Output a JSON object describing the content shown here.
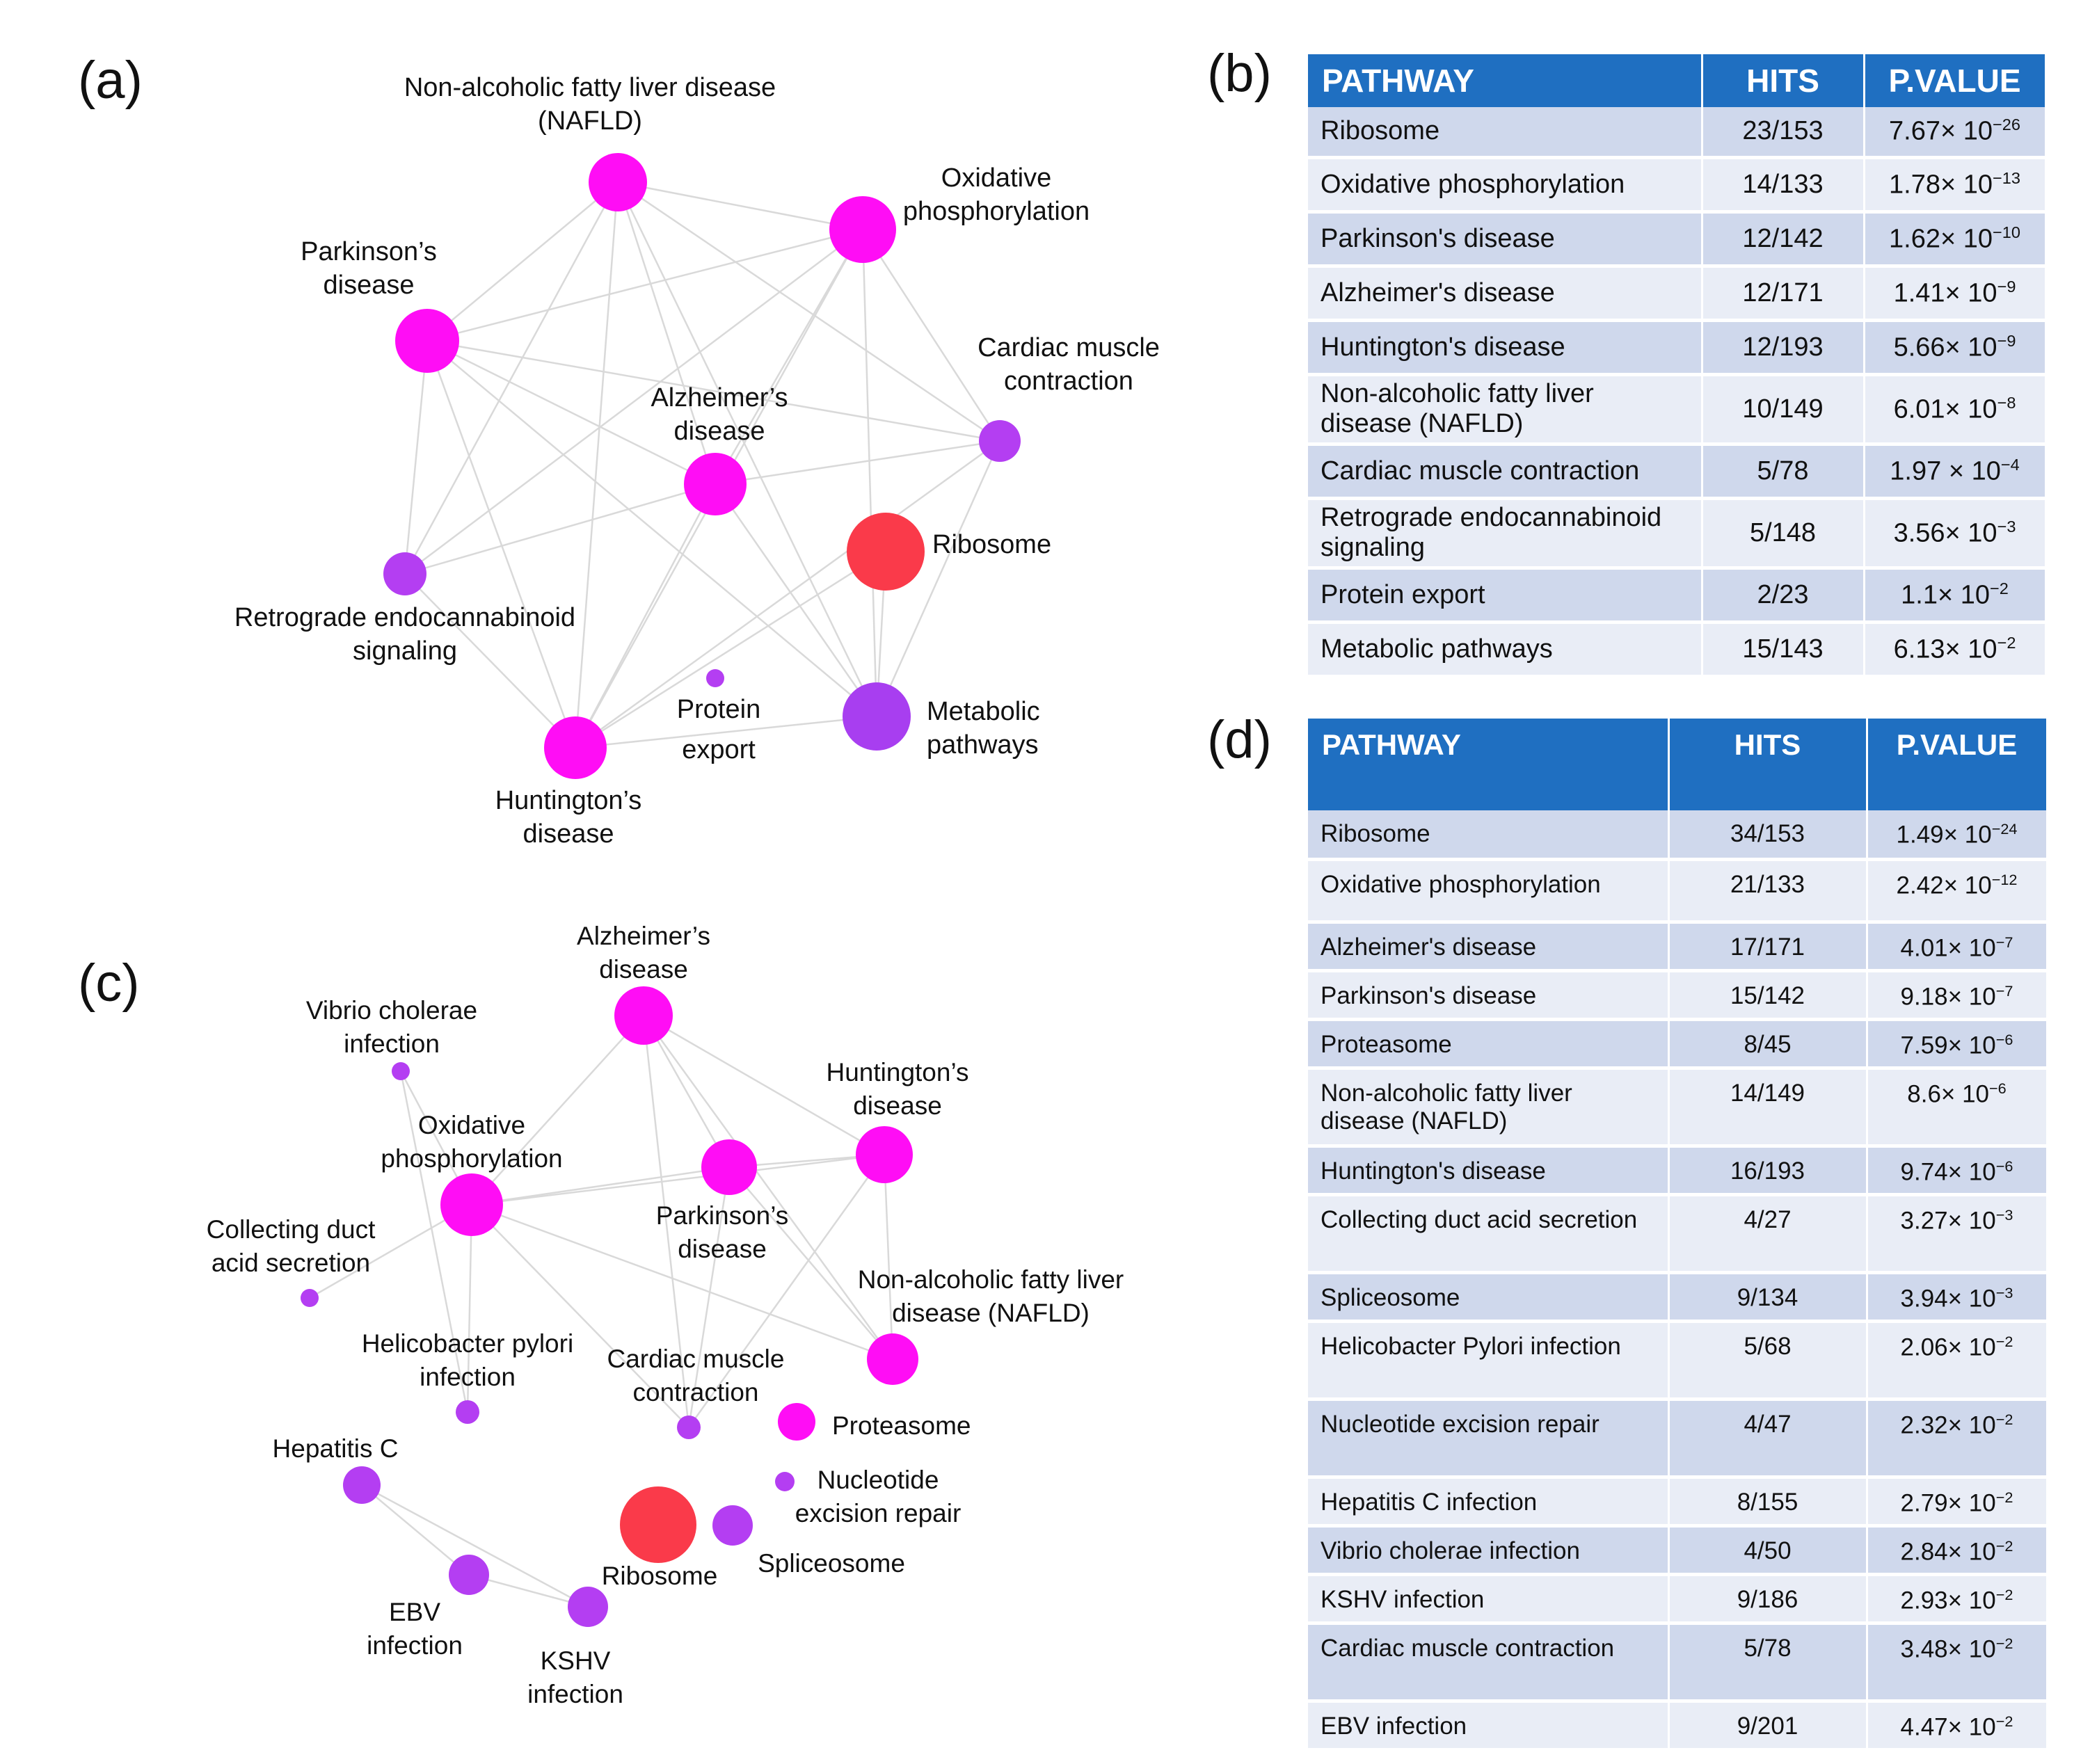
{
  "panels": {
    "a": "(a)",
    "b": "(b)",
    "c": "(c)",
    "d": "(d)"
  },
  "colors": {
    "magenta": "#ff0df5",
    "red": "#fa3a4a",
    "purple": "#b43ef2",
    "violet": "#a83ef0",
    "table_header": "#1f6fc1"
  },
  "network_a": {
    "nodes": [
      {
        "id": "nafld",
        "label": [
          "Non-alcoholic fatty liver disease",
          "(NAFLD)"
        ],
        "color": "magenta"
      },
      {
        "id": "oxphos",
        "label": [
          "Oxidative",
          "phosphorylation"
        ],
        "color": "magenta"
      },
      {
        "id": "parkinson",
        "label": [
          "Parkinson’s",
          "disease"
        ],
        "color": "magenta"
      },
      {
        "id": "cardiac",
        "label": [
          "Cardiac muscle",
          "contraction"
        ],
        "color": "purple"
      },
      {
        "id": "alzheimer",
        "label": [
          "Alzheimer’s",
          "disease"
        ],
        "color": "magenta"
      },
      {
        "id": "ribosome",
        "label": [
          "Ribosome"
        ],
        "color": "red"
      },
      {
        "id": "retrograde",
        "label": [
          "Retrograde endocannabinoid",
          "signaling"
        ],
        "color": "purple"
      },
      {
        "id": "protein_export",
        "label": [
          "Protein",
          "export"
        ],
        "color": "purple"
      },
      {
        "id": "metabolic",
        "label": [
          "Metabolic",
          "pathways"
        ],
        "color": "violet"
      },
      {
        "id": "huntington",
        "label": [
          "Huntington’s",
          "disease"
        ],
        "color": "magenta"
      }
    ],
    "edges": [
      [
        "nafld",
        "oxphos"
      ],
      [
        "nafld",
        "parkinson"
      ],
      [
        "nafld",
        "alzheimer"
      ],
      [
        "nafld",
        "cardiac"
      ],
      [
        "nafld",
        "retrograde"
      ],
      [
        "nafld",
        "huntington"
      ],
      [
        "nafld",
        "metabolic"
      ],
      [
        "oxphos",
        "parkinson"
      ],
      [
        "oxphos",
        "alzheimer"
      ],
      [
        "oxphos",
        "cardiac"
      ],
      [
        "oxphos",
        "huntington"
      ],
      [
        "oxphos",
        "retrograde"
      ],
      [
        "oxphos",
        "metabolic"
      ],
      [
        "parkinson",
        "alzheimer"
      ],
      [
        "parkinson",
        "cardiac"
      ],
      [
        "parkinson",
        "huntington"
      ],
      [
        "parkinson",
        "metabolic"
      ],
      [
        "parkinson",
        "retrograde"
      ],
      [
        "alzheimer",
        "cardiac"
      ],
      [
        "alzheimer",
        "huntington"
      ],
      [
        "alzheimer",
        "metabolic"
      ],
      [
        "alzheimer",
        "retrograde"
      ],
      [
        "cardiac",
        "huntington"
      ],
      [
        "cardiac",
        "metabolic"
      ],
      [
        "retrograde",
        "huntington"
      ],
      [
        "huntington",
        "metabolic"
      ],
      [
        "huntington",
        "ribosome"
      ],
      [
        "ribosome",
        "metabolic"
      ]
    ]
  },
  "network_c": {
    "nodes": [
      {
        "id": "alzheimer",
        "label": [
          "Alzheimer’s",
          "disease"
        ],
        "color": "magenta"
      },
      {
        "id": "vibrio",
        "label": [
          "Vibrio cholerae",
          "infection"
        ],
        "color": "purple"
      },
      {
        "id": "huntington",
        "label": [
          "Huntington’s",
          "disease"
        ],
        "color": "magenta"
      },
      {
        "id": "oxphos",
        "label": [
          "Oxidative",
          "phosphorylation"
        ],
        "color": "magenta"
      },
      {
        "id": "parkinson",
        "label": [
          "Parkinson’s",
          "disease"
        ],
        "color": "magenta"
      },
      {
        "id": "collecting",
        "label": [
          "Collecting duct",
          "acid secretion"
        ],
        "color": "purple"
      },
      {
        "id": "nafld",
        "label": [
          "Non-alcoholic fatty liver",
          "disease (NAFLD)"
        ],
        "color": "magenta"
      },
      {
        "id": "helico",
        "label": [
          "Helicobacter pylori",
          "infection"
        ],
        "color": "purple"
      },
      {
        "id": "cardiac",
        "label": [
          "Cardiac muscle",
          "contraction"
        ],
        "color": "purple"
      },
      {
        "id": "proteasome",
        "label": [
          "Proteasome"
        ],
        "color": "magenta"
      },
      {
        "id": "hepc",
        "label": [
          "Hepatitis C"
        ],
        "color": "purple"
      },
      {
        "id": "ner",
        "label": [
          "Nucleotide",
          "excision repair"
        ],
        "color": "purple"
      },
      {
        "id": "ribosome",
        "label": [
          "Ribosome"
        ],
        "color": "red"
      },
      {
        "id": "spliceosome",
        "label": [
          "Spliceosome"
        ],
        "color": "purple"
      },
      {
        "id": "ebv",
        "label": [
          "EBV",
          "infection"
        ],
        "color": "purple"
      },
      {
        "id": "kshv",
        "label": [
          "KSHV",
          "infection"
        ],
        "color": "purple"
      }
    ],
    "edges": [
      [
        "alzheimer",
        "oxphos"
      ],
      [
        "alzheimer",
        "parkinson"
      ],
      [
        "alzheimer",
        "huntington"
      ],
      [
        "alzheimer",
        "nafld"
      ],
      [
        "alzheimer",
        "cardiac"
      ],
      [
        "vibrio",
        "oxphos"
      ],
      [
        "vibrio",
        "helico"
      ],
      [
        "oxphos",
        "parkinson"
      ],
      [
        "oxphos",
        "huntington"
      ],
      [
        "oxphos",
        "collecting"
      ],
      [
        "oxphos",
        "helico"
      ],
      [
        "oxphos",
        "cardiac"
      ],
      [
        "oxphos",
        "nafld"
      ],
      [
        "parkinson",
        "huntington"
      ],
      [
        "parkinson",
        "nafld"
      ],
      [
        "parkinson",
        "cardiac"
      ],
      [
        "huntington",
        "nafld"
      ],
      [
        "huntington",
        "cardiac"
      ],
      [
        "hepc",
        "ebv"
      ],
      [
        "hepc",
        "kshv"
      ],
      [
        "ebv",
        "kshv"
      ]
    ]
  },
  "table_b": {
    "headers": [
      "PATHWAY",
      "HITS",
      "P.VALUE"
    ],
    "rows": [
      {
        "pathway": "Ribosome",
        "hits": "23/153",
        "p_mant": "7.67× 10",
        "p_exp": "−26"
      },
      {
        "pathway": "Oxidative phosphorylation",
        "hits": "14/133",
        "p_mant": "1.78× 10",
        "p_exp": "−13"
      },
      {
        "pathway": "Parkinson's disease",
        "hits": "12/142",
        "p_mant": "1.62× 10",
        "p_exp": "−10"
      },
      {
        "pathway": "Alzheimer's disease",
        "hits": "12/171",
        "p_mant": "1.41× 10",
        "p_exp": "−9"
      },
      {
        "pathway": "Huntington's disease",
        "hits": "12/193",
        "p_mant": "5.66× 10",
        "p_exp": "−9"
      },
      {
        "pathway": "Non-alcoholic fatty liver disease (NAFLD)",
        "hits": "10/149",
        "p_mant": "6.01× 10",
        "p_exp": "−8"
      },
      {
        "pathway": "Cardiac muscle contraction",
        "hits": "5/78",
        "p_mant": "1.97 × 10",
        "p_exp": "−4"
      },
      {
        "pathway": "Retrograde endocannabinoid signaling",
        "hits": "5/148",
        "p_mant": "3.56× 10",
        "p_exp": "−3"
      },
      {
        "pathway": "Protein export",
        "hits": "2/23",
        "p_mant": "1.1× 10",
        "p_exp": "−2"
      },
      {
        "pathway": "Metabolic pathways",
        "hits": "15/143",
        "p_mant": "6.13× 10",
        "p_exp": "−2"
      }
    ]
  },
  "table_d": {
    "headers": [
      "PATHWAY",
      "HITS",
      "P.VALUE"
    ],
    "rows": [
      {
        "pathway": "Ribosome",
        "hits": "34/153",
        "p_mant": "1.49× 10",
        "p_exp": "−24"
      },
      {
        "pathway": "Oxidative phosphorylation",
        "hits": "21/133",
        "p_mant": "2.42× 10",
        "p_exp": "−12"
      },
      {
        "pathway": "Alzheimer's disease",
        "hits": "17/171",
        "p_mant": "4.01× 10",
        "p_exp": "−7"
      },
      {
        "pathway": "Parkinson's disease",
        "hits": "15/142",
        "p_mant": "9.18× 10",
        "p_exp": "−7"
      },
      {
        "pathway": "Proteasome",
        "hits": "8/45",
        "p_mant": "7.59× 10",
        "p_exp": "−6"
      },
      {
        "pathway": "Non-alcoholic fatty liver disease (NAFLD)",
        "hits": "14/149",
        "p_mant": "8.6× 10",
        "p_exp": "−6"
      },
      {
        "pathway": "Huntington's disease",
        "hits": "16/193",
        "p_mant": "9.74× 10",
        "p_exp": "−6"
      },
      {
        "pathway": "Collecting duct acid secretion",
        "hits": "4/27",
        "p_mant": "3.27× 10",
        "p_exp": "−3"
      },
      {
        "pathway": "Spliceosome",
        "hits": "9/134",
        "p_mant": "3.94× 10",
        "p_exp": "−3"
      },
      {
        "pathway": "Helicobacter Pylori infection",
        "hits": "5/68",
        "p_mant": "2.06× 10",
        "p_exp": "−2"
      },
      {
        "pathway": "Nucleotide excision repair",
        "hits": "4/47",
        "p_mant": "2.32× 10",
        "p_exp": "−2"
      },
      {
        "pathway": "Hepatitis C infection",
        "hits": "8/155",
        "p_mant": "2.79× 10",
        "p_exp": "−2"
      },
      {
        "pathway": "Vibrio cholerae infection",
        "hits": "4/50",
        "p_mant": "2.84× 10",
        "p_exp": "−2"
      },
      {
        "pathway": "KSHV infection",
        "hits": "9/186",
        "p_mant": "2.93× 10",
        "p_exp": "−2"
      },
      {
        "pathway": "Cardiac muscle contraction",
        "hits": "5/78",
        "p_mant": "3.48× 10",
        "p_exp": "−2"
      },
      {
        "pathway": "EBV infection",
        "hits": "9/201",
        "p_mant": "4.47× 10",
        "p_exp": "−2"
      }
    ]
  }
}
